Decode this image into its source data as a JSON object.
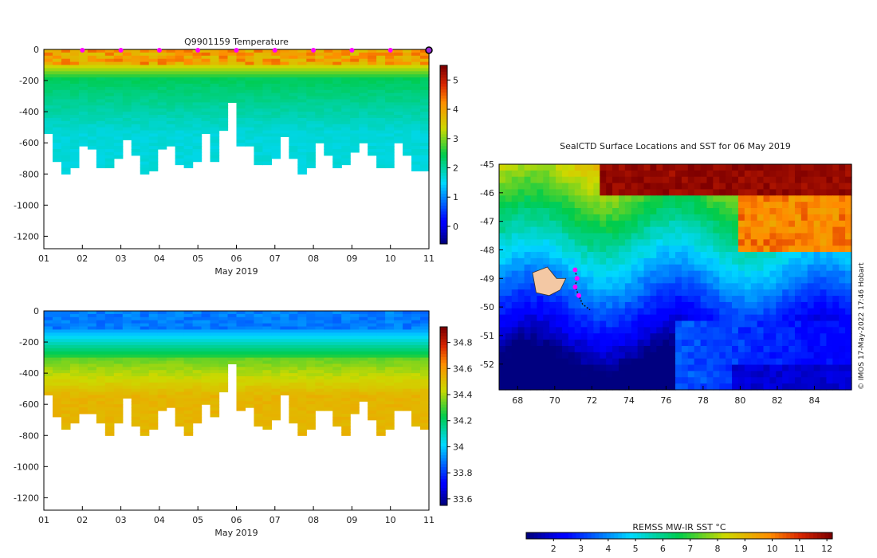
{
  "chart_data": [
    {
      "type": "heatmap",
      "title": "Q9901159  Temperature",
      "xlabel": "May 2019",
      "ylabel": "",
      "xlim": [
        1,
        11
      ],
      "ylim": [
        -1280,
        0
      ],
      "x_ticks": [
        "01",
        "02",
        "03",
        "04",
        "05",
        "06",
        "07",
        "08",
        "09",
        "10",
        "11"
      ],
      "y_ticks": [
        0,
        -200,
        -400,
        -600,
        -800,
        -1000,
        -1200
      ],
      "colorbar": {
        "min": -0.6,
        "max": 5.5,
        "ticks": [
          0,
          1,
          2,
          3,
          4,
          5
        ],
        "colormap": "jet"
      },
      "profile_markers_day": [
        2,
        3,
        4,
        5,
        6,
        7,
        8,
        9,
        10
      ],
      "last_marker_day": 11
    },
    {
      "type": "heatmap",
      "title": "",
      "xlabel": "May 2019",
      "ylabel": "",
      "xlim": [
        1,
        11
      ],
      "ylim": [
        -1280,
        0
      ],
      "x_ticks": [
        "01",
        "02",
        "03",
        "04",
        "05",
        "06",
        "07",
        "08",
        "09",
        "10",
        "11"
      ],
      "y_ticks": [
        0,
        -200,
        -400,
        -600,
        -800,
        -1000,
        -1200
      ],
      "colorbar": {
        "min": 33.55,
        "max": 34.92,
        "ticks": [
          "33.6",
          "33.8",
          "34",
          "34.2",
          "34.4",
          "34.6",
          "34.8"
        ],
        "colormap": "jet"
      }
    },
    {
      "type": "map",
      "title": "SealCTD Surface Locations and SST for 06 May 2019",
      "lon_range": [
        67,
        86
      ],
      "lat_range": [
        -52.9,
        -45
      ],
      "x_ticks": [
        68,
        70,
        72,
        74,
        76,
        78,
        80,
        82,
        84
      ],
      "y_ticks": [
        -45,
        -46,
        -47,
        -48,
        -49,
        -50,
        -51,
        -52
      ],
      "colorbar": {
        "label": "REMSS MW-IR SST °C",
        "min": 1,
        "max": 12.2,
        "ticks": [
          2,
          3,
          4,
          5,
          6,
          7,
          8,
          9,
          10,
          11,
          12
        ]
      },
      "credit": "© IMOS 17-May-2022 17:46 Hobart"
    }
  ]
}
